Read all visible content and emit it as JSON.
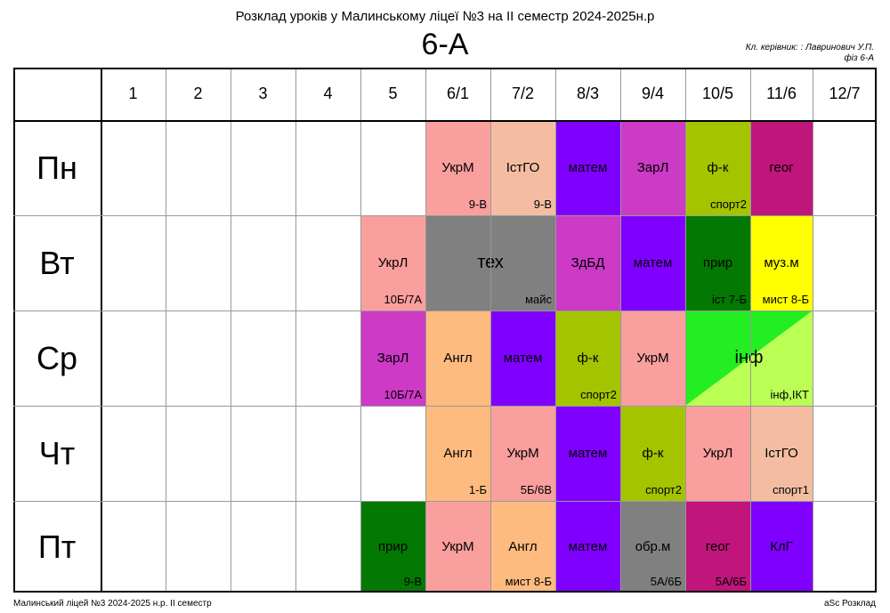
{
  "header": {
    "title": "Розклад уроків у Малинському ліцеї №3 на ІІ семестр 2024-2025н.р",
    "class_name": "6-А",
    "teacher_line1": "Кл. керівник: : Лавринович У.П.",
    "teacher_line2": "фіз 6-А"
  },
  "periods": [
    "1",
    "2",
    "3",
    "4",
    "5",
    "6/1",
    "7/2",
    "8/3",
    "9/4",
    "10/5",
    "11/6",
    "12/7"
  ],
  "days": [
    "Пн",
    "Вт",
    "Ср",
    "Чт",
    "Пт"
  ],
  "lessons": [
    {
      "day": 0,
      "period": 5,
      "subject": "УкрМ",
      "room": "9-В",
      "color": "#f99f9e"
    },
    {
      "day": 0,
      "period": 6,
      "subject": "ІстГО",
      "room": "9-В",
      "color": "#f4bda2"
    },
    {
      "day": 0,
      "period": 7,
      "subject": "матем",
      "room": "",
      "color": "#8000ff"
    },
    {
      "day": 0,
      "period": 8,
      "subject": "ЗарЛ",
      "room": "",
      "color": "#cc3ac6"
    },
    {
      "day": 0,
      "period": 9,
      "subject": "ф-к",
      "room": "спорт2",
      "color": "#a4c400"
    },
    {
      "day": 0,
      "period": 10,
      "subject": "геог",
      "room": "",
      "color": "#c0157a"
    },
    {
      "day": 1,
      "period": 4,
      "subject": "УкрЛ",
      "room": "10Б/7А",
      "color": "#f99f9e"
    },
    {
      "day": 1,
      "period": 5,
      "span": 2,
      "subject": "тех",
      "room": "майс",
      "color": "#808080",
      "big": true
    },
    {
      "day": 1,
      "period": 7,
      "subject": "ЗдБД",
      "room": "",
      "color": "#cc3ac6"
    },
    {
      "day": 1,
      "period": 8,
      "subject": "матем",
      "room": "",
      "color": "#8000ff"
    },
    {
      "day": 1,
      "period": 9,
      "subject": "прир",
      "room": "іст 7-Б",
      "color": "#037803"
    },
    {
      "day": 1,
      "period": 10,
      "subject": "муз.м",
      "room": "мист 8-Б",
      "color": "#ffff00"
    },
    {
      "day": 2,
      "period": 4,
      "subject": "ЗарЛ",
      "room": "10Б/7А",
      "color": "#cc3ac6"
    },
    {
      "day": 2,
      "period": 5,
      "subject": "Англ",
      "room": "",
      "color": "#fdbb7f"
    },
    {
      "day": 2,
      "period": 6,
      "subject": "матем",
      "room": "",
      "color": "#8000ff"
    },
    {
      "day": 2,
      "period": 7,
      "subject": "ф-к",
      "room": "спорт2",
      "color": "#a4c400"
    },
    {
      "day": 2,
      "period": 8,
      "subject": "УкрМ",
      "room": "",
      "color": "#f99f9e"
    },
    {
      "day": 2,
      "period": 9,
      "span": 2,
      "subject": "інф",
      "room": "інф,ІКТ",
      "color": "#bbff55",
      "color2": "#22ee22",
      "diag": true,
      "big": true
    },
    {
      "day": 3,
      "period": 5,
      "subject": "Англ",
      "room": "1-Б",
      "color": "#fdbb7f"
    },
    {
      "day": 3,
      "period": 6,
      "subject": "УкрМ",
      "room": "5Б/6В",
      "color": "#f99f9e"
    },
    {
      "day": 3,
      "period": 7,
      "subject": "матем",
      "room": "",
      "color": "#8000ff"
    },
    {
      "day": 3,
      "period": 8,
      "subject": "ф-к",
      "room": "спорт2",
      "color": "#a4c400"
    },
    {
      "day": 3,
      "period": 9,
      "subject": "УкрЛ",
      "room": "",
      "color": "#f99f9e"
    },
    {
      "day": 3,
      "period": 10,
      "subject": "ІстГО",
      "room": "спорт1",
      "color": "#f4bda2"
    },
    {
      "day": 4,
      "period": 4,
      "subject": "прир",
      "room": "9-В",
      "color": "#037803"
    },
    {
      "day": 4,
      "period": 5,
      "subject": "УкрМ",
      "room": "",
      "color": "#f99f9e"
    },
    {
      "day": 4,
      "period": 6,
      "subject": "Англ",
      "room": "мист 8-Б",
      "color": "#fdbb7f"
    },
    {
      "day": 4,
      "period": 7,
      "subject": "матем",
      "room": "",
      "color": "#8000ff"
    },
    {
      "day": 4,
      "period": 8,
      "subject": "обр.м",
      "room": "5А/6Б",
      "color": "#808080"
    },
    {
      "day": 4,
      "period": 9,
      "subject": "геог",
      "room": "5А/6Б",
      "color": "#c0157a"
    },
    {
      "day": 4,
      "period": 10,
      "subject": "КлГ",
      "room": "",
      "color": "#8000ff"
    }
  ],
  "footer": {
    "left": "Малинський ліцей №3  2024-2025 н.р. ІІ семестр",
    "right": "aSc Розклад"
  }
}
